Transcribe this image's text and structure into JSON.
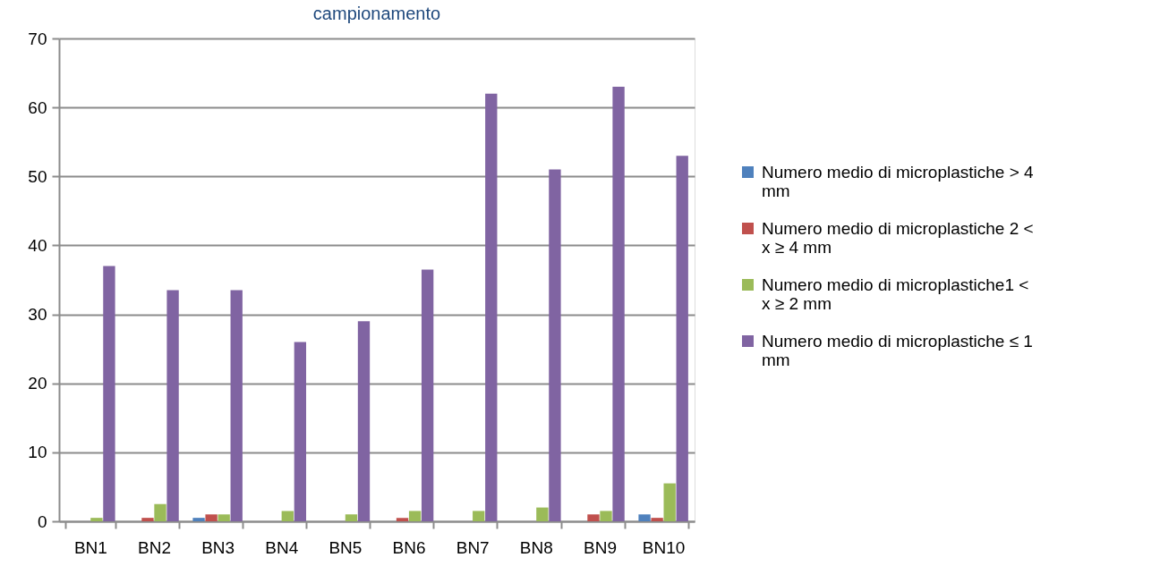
{
  "chart_data": {
    "type": "bar",
    "title": "campionamento",
    "categories": [
      "BN1",
      "BN2",
      "BN3",
      "BN4",
      "BN5",
      "BN6",
      "BN7",
      "BN8",
      "BN9",
      "BN10"
    ],
    "series": [
      {
        "name": "Numero medio di microplastiche > 4 mm",
        "color": "#4f81bd",
        "values": [
          0,
          0,
          0.5,
          0,
          0,
          0,
          0,
          0,
          0,
          1
        ]
      },
      {
        "name": "Numero medio di microplastiche 2 < x ≥ 4 mm",
        "color": "#c0504d",
        "values": [
          0,
          0.5,
          1,
          0,
          0,
          0.5,
          0,
          0,
          1,
          0.5
        ]
      },
      {
        "name": "Numero medio di microplastiche1 < x  ≥  2 mm",
        "color": "#9bbb59",
        "values": [
          0.5,
          2.5,
          1,
          1.5,
          1,
          1.5,
          1.5,
          2,
          1.5,
          5.5
        ]
      },
      {
        "name": "Numero medio di microplastiche ≤ 1 mm",
        "color": "#8064a2",
        "values": [
          37,
          33.5,
          33.5,
          26,
          29,
          36.5,
          62,
          51,
          63,
          53
        ]
      }
    ],
    "ylim": [
      0,
      70
    ],
    "yticks": [
      0,
      10,
      20,
      30,
      40,
      50,
      60,
      70
    ],
    "grid": "y",
    "legend": "right"
  }
}
